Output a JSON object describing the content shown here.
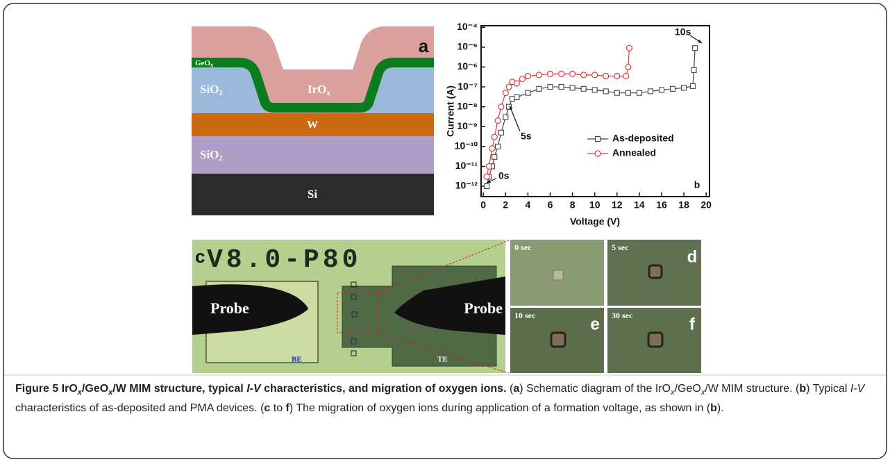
{
  "panel_a": {
    "letter": "a",
    "ge_ox": [
      "GeO",
      "x"
    ],
    "si_o2_top": [
      "SiO",
      "2"
    ],
    "ir_ox": [
      "IrO",
      "x"
    ],
    "w": "W",
    "si_o2_bottom": [
      "SiO",
      "2"
    ],
    "si": "Si"
  },
  "chart_data": {
    "type": "line",
    "panel_letter": "b",
    "xlabel": "Voltage (V)",
    "ylabel": "Current (A)",
    "xlim": [
      -0.2,
      20.3
    ],
    "ylim": [
      3e-13,
      0.00012
    ],
    "log_y": true,
    "grid": false,
    "legend_loc": "lower right",
    "xticks": [
      0,
      2,
      4,
      6,
      8,
      10,
      12,
      14,
      16,
      18,
      20
    ],
    "yticks": [
      {
        "value": 0.0001,
        "label": "10⁻⁴"
      },
      {
        "value": 1e-05,
        "label": "10⁻⁵"
      },
      {
        "value": 1e-06,
        "label": "10⁻⁶"
      },
      {
        "value": 1e-07,
        "label": "10⁻⁷"
      },
      {
        "value": 1e-08,
        "label": "10⁻⁸"
      },
      {
        "value": 1e-09,
        "label": "10⁻⁹"
      },
      {
        "value": 1e-10,
        "label": "10⁻¹⁰"
      },
      {
        "value": 1e-11,
        "label": "10⁻¹¹"
      },
      {
        "value": 1e-12,
        "label": "10⁻¹²"
      }
    ],
    "series": [
      {
        "name": "As-deposited",
        "color": "#444444",
        "marker": "square",
        "x": [
          0.3,
          0.5,
          0.8,
          1.0,
          1.3,
          1.6,
          2.0,
          2.3,
          2.6,
          3.0,
          4,
          5,
          6,
          7,
          8,
          9,
          10,
          11,
          12,
          13,
          14,
          15,
          16,
          17,
          18,
          18.8,
          18.9,
          19.0
        ],
        "values": [
          1e-12,
          3e-12,
          1e-11,
          3e-11,
          1e-10,
          5e-10,
          3e-09,
          1e-08,
          2.5e-08,
          3e-08,
          5e-08,
          8e-08,
          1e-07,
          1e-07,
          9e-08,
          8e-08,
          7e-08,
          6e-08,
          5e-08,
          5e-08,
          5e-08,
          6e-08,
          7e-08,
          8e-08,
          9e-08,
          1.1e-07,
          7e-07,
          9e-06
        ]
      },
      {
        "name": "Annealed",
        "color": "#e0393e",
        "marker": "circle",
        "x": [
          0.3,
          0.5,
          0.8,
          1.0,
          1.3,
          1.6,
          2.0,
          2.3,
          2.6,
          3.0,
          3.5,
          4,
          5,
          6,
          7,
          8,
          9,
          10,
          11,
          12,
          12.8,
          13.0,
          13.1
        ],
        "values": [
          3e-12,
          1e-11,
          8e-11,
          3e-10,
          2e-09,
          1e-08,
          5e-08,
          1e-07,
          1.8e-07,
          1.5e-07,
          2.5e-07,
          3.5e-07,
          4e-07,
          4.5e-07,
          4.5e-07,
          4.5e-07,
          4e-07,
          4e-07,
          3.5e-07,
          3.5e-07,
          3.5e-07,
          1e-06,
          9e-06
        ]
      }
    ],
    "annotations": [
      "10s",
      "5s",
      "0s"
    ]
  },
  "panel_c": {
    "letter": "c",
    "label": "V8.0-P80",
    "probe_left": "Probe",
    "probe_right": "Probe",
    "be": "BE",
    "te": "TE",
    "tiles": [
      {
        "time": "0 sec"
      },
      {
        "time": "5 sec",
        "letter": "d"
      },
      {
        "time": "10 sec",
        "letter": "e"
      },
      {
        "time": "30 sec",
        "letter": "f"
      }
    ]
  },
  "caption": [
    "Figure 5 IrO",
    "x",
    "/GeO",
    "x",
    "/W MIM structure, typical ",
    "I-V",
    " characteristics, and migration of oxygen ions.",
    " (",
    "a",
    ") Schematic diagram of the IrO",
    "x",
    "/GeO",
    "x",
    "/W MIM structure. (",
    "b",
    ") Typical ",
    "I-V",
    " characteristics of as-deposited and PMA devices. (",
    "c",
    " to ",
    "f",
    ") The migration of oxygen ions during application of a formation voltage, as shown in (",
    "b",
    ")."
  ]
}
